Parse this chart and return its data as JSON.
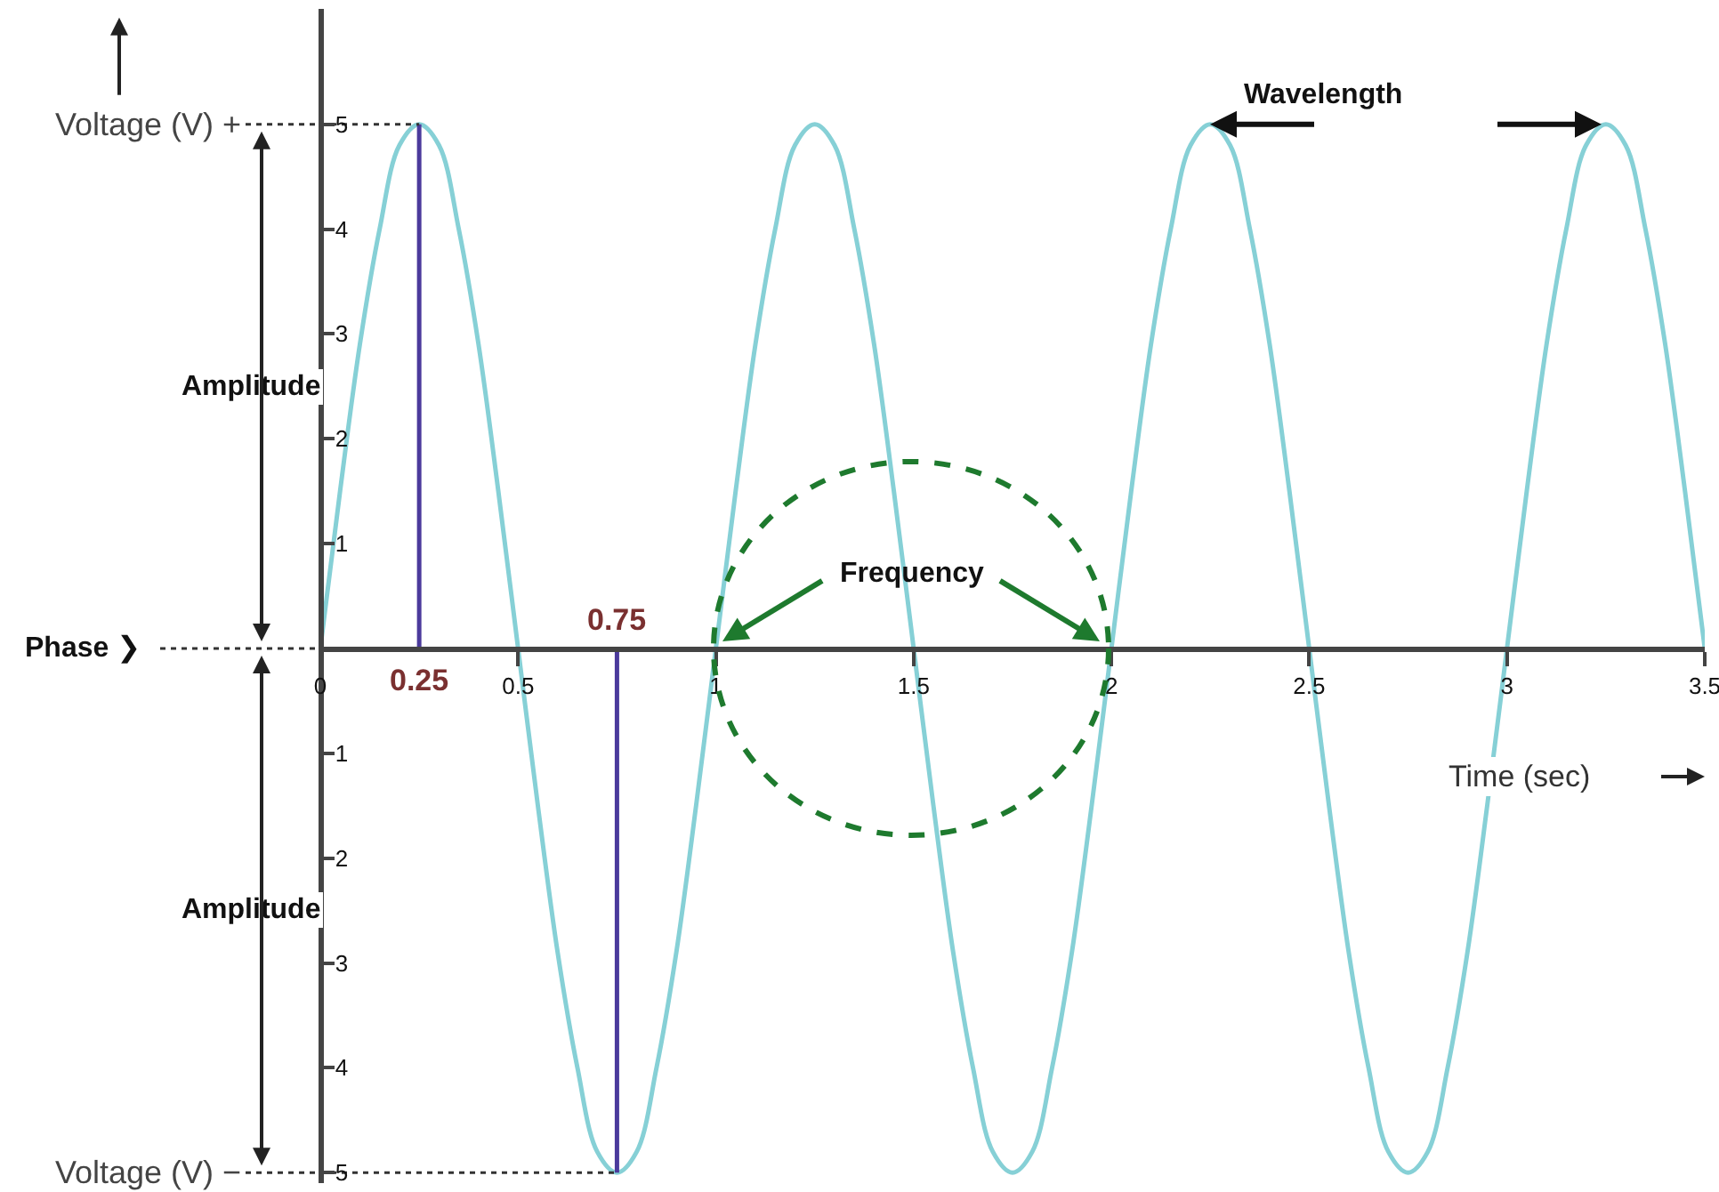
{
  "chart_data": {
    "type": "line",
    "xlabel": "Time (sec)",
    "xlim": [
      0,
      3.5
    ],
    "xticks": [
      0,
      0.5,
      1,
      1.5,
      2,
      2.5,
      3,
      3.5
    ],
    "ylim": [
      -5.1,
      6.1
    ],
    "yticks": [
      {
        "value": -5,
        "label": "5"
      },
      {
        "value": -4,
        "label": "4"
      },
      {
        "value": -3,
        "label": "3"
      },
      {
        "value": -2,
        "label": "2"
      },
      {
        "value": -1,
        "label": "1"
      },
      1,
      2,
      3,
      4,
      5
    ],
    "grid": false,
    "marker": "none",
    "line_style": "solid",
    "series": [
      {
        "color": "#86d0d6",
        "x": [
          0,
          0.05,
          0.1,
          0.15,
          0.2,
          0.25,
          0.3,
          0.35,
          0.4,
          0.45,
          0.5,
          0.55,
          0.6,
          0.65,
          0.7,
          0.75,
          0.8,
          0.85,
          0.9,
          0.95,
          1,
          1.05,
          1.1,
          1.15,
          1.2,
          1.25,
          1.3,
          1.35,
          1.4,
          1.45,
          1.5,
          1.55,
          1.6,
          1.65,
          1.7,
          1.75,
          1.8,
          1.85,
          1.9,
          1.95,
          2,
          2.05,
          2.1,
          2.15,
          2.2,
          2.25,
          2.3,
          2.35,
          2.4,
          2.45,
          2.5,
          2.55,
          2.6,
          2.65,
          2.7,
          2.75,
          2.8,
          2.85,
          2.9,
          2.95,
          3,
          3.05,
          3.1,
          3.15,
          3.2,
          3.25,
          3.3,
          3.35,
          3.4,
          3.45,
          3.5
        ],
        "values": [
          0,
          1.5,
          2.9,
          4,
          4.8,
          5,
          4.8,
          4,
          2.9,
          1.5,
          0,
          -1.5,
          -2.9,
          -4,
          -4.8,
          -5,
          -4.8,
          -4,
          -2.9,
          -1.5,
          0,
          1.5,
          2.9,
          4,
          4.8,
          5,
          4.8,
          4,
          2.9,
          1.5,
          0,
          -1.5,
          -2.9,
          -4,
          -4.8,
          -5,
          -4.8,
          -4,
          -2.9,
          -1.5,
          0,
          1.5,
          2.9,
          4,
          4.8,
          5,
          4.8,
          4,
          2.9,
          1.5,
          0,
          -1.5,
          -2.9,
          -4,
          -4.8,
          -5,
          -4.8,
          -4,
          -2.9,
          -1.5,
          0,
          1.5,
          2.9,
          4,
          4.8,
          5,
          4.8,
          4,
          2.9,
          1.5,
          0
        ]
      },
      {
        "color": "#4b3a9c",
        "x": [
          0.25,
          0.25
        ],
        "values": [
          0,
          5
        ]
      },
      {
        "color": "#4b3a9c",
        "x": [
          0.75,
          0.75
        ],
        "values": [
          0,
          -5
        ]
      },
      {
        "color": "#333333",
        "line_style": "dotted",
        "x": [
          0,
          0.25
        ],
        "values": [
          5,
          5
        ]
      },
      {
        "color": "#333333",
        "line_style": "dotted",
        "x": [
          0,
          0.75
        ],
        "values": [
          -5,
          -5
        ]
      }
    ],
    "annotations": [
      "Voltage (V) +",
      "Amplitude",
      "Phase ❯",
      "Amplitude",
      "Voltage (V) −",
      {
        "text": "0.25",
        "x": 0.25,
        "y": 0
      },
      {
        "text": "0.75",
        "x": 0.75,
        "y": 0
      },
      "Wavelength",
      "Frequency"
    ]
  }
}
